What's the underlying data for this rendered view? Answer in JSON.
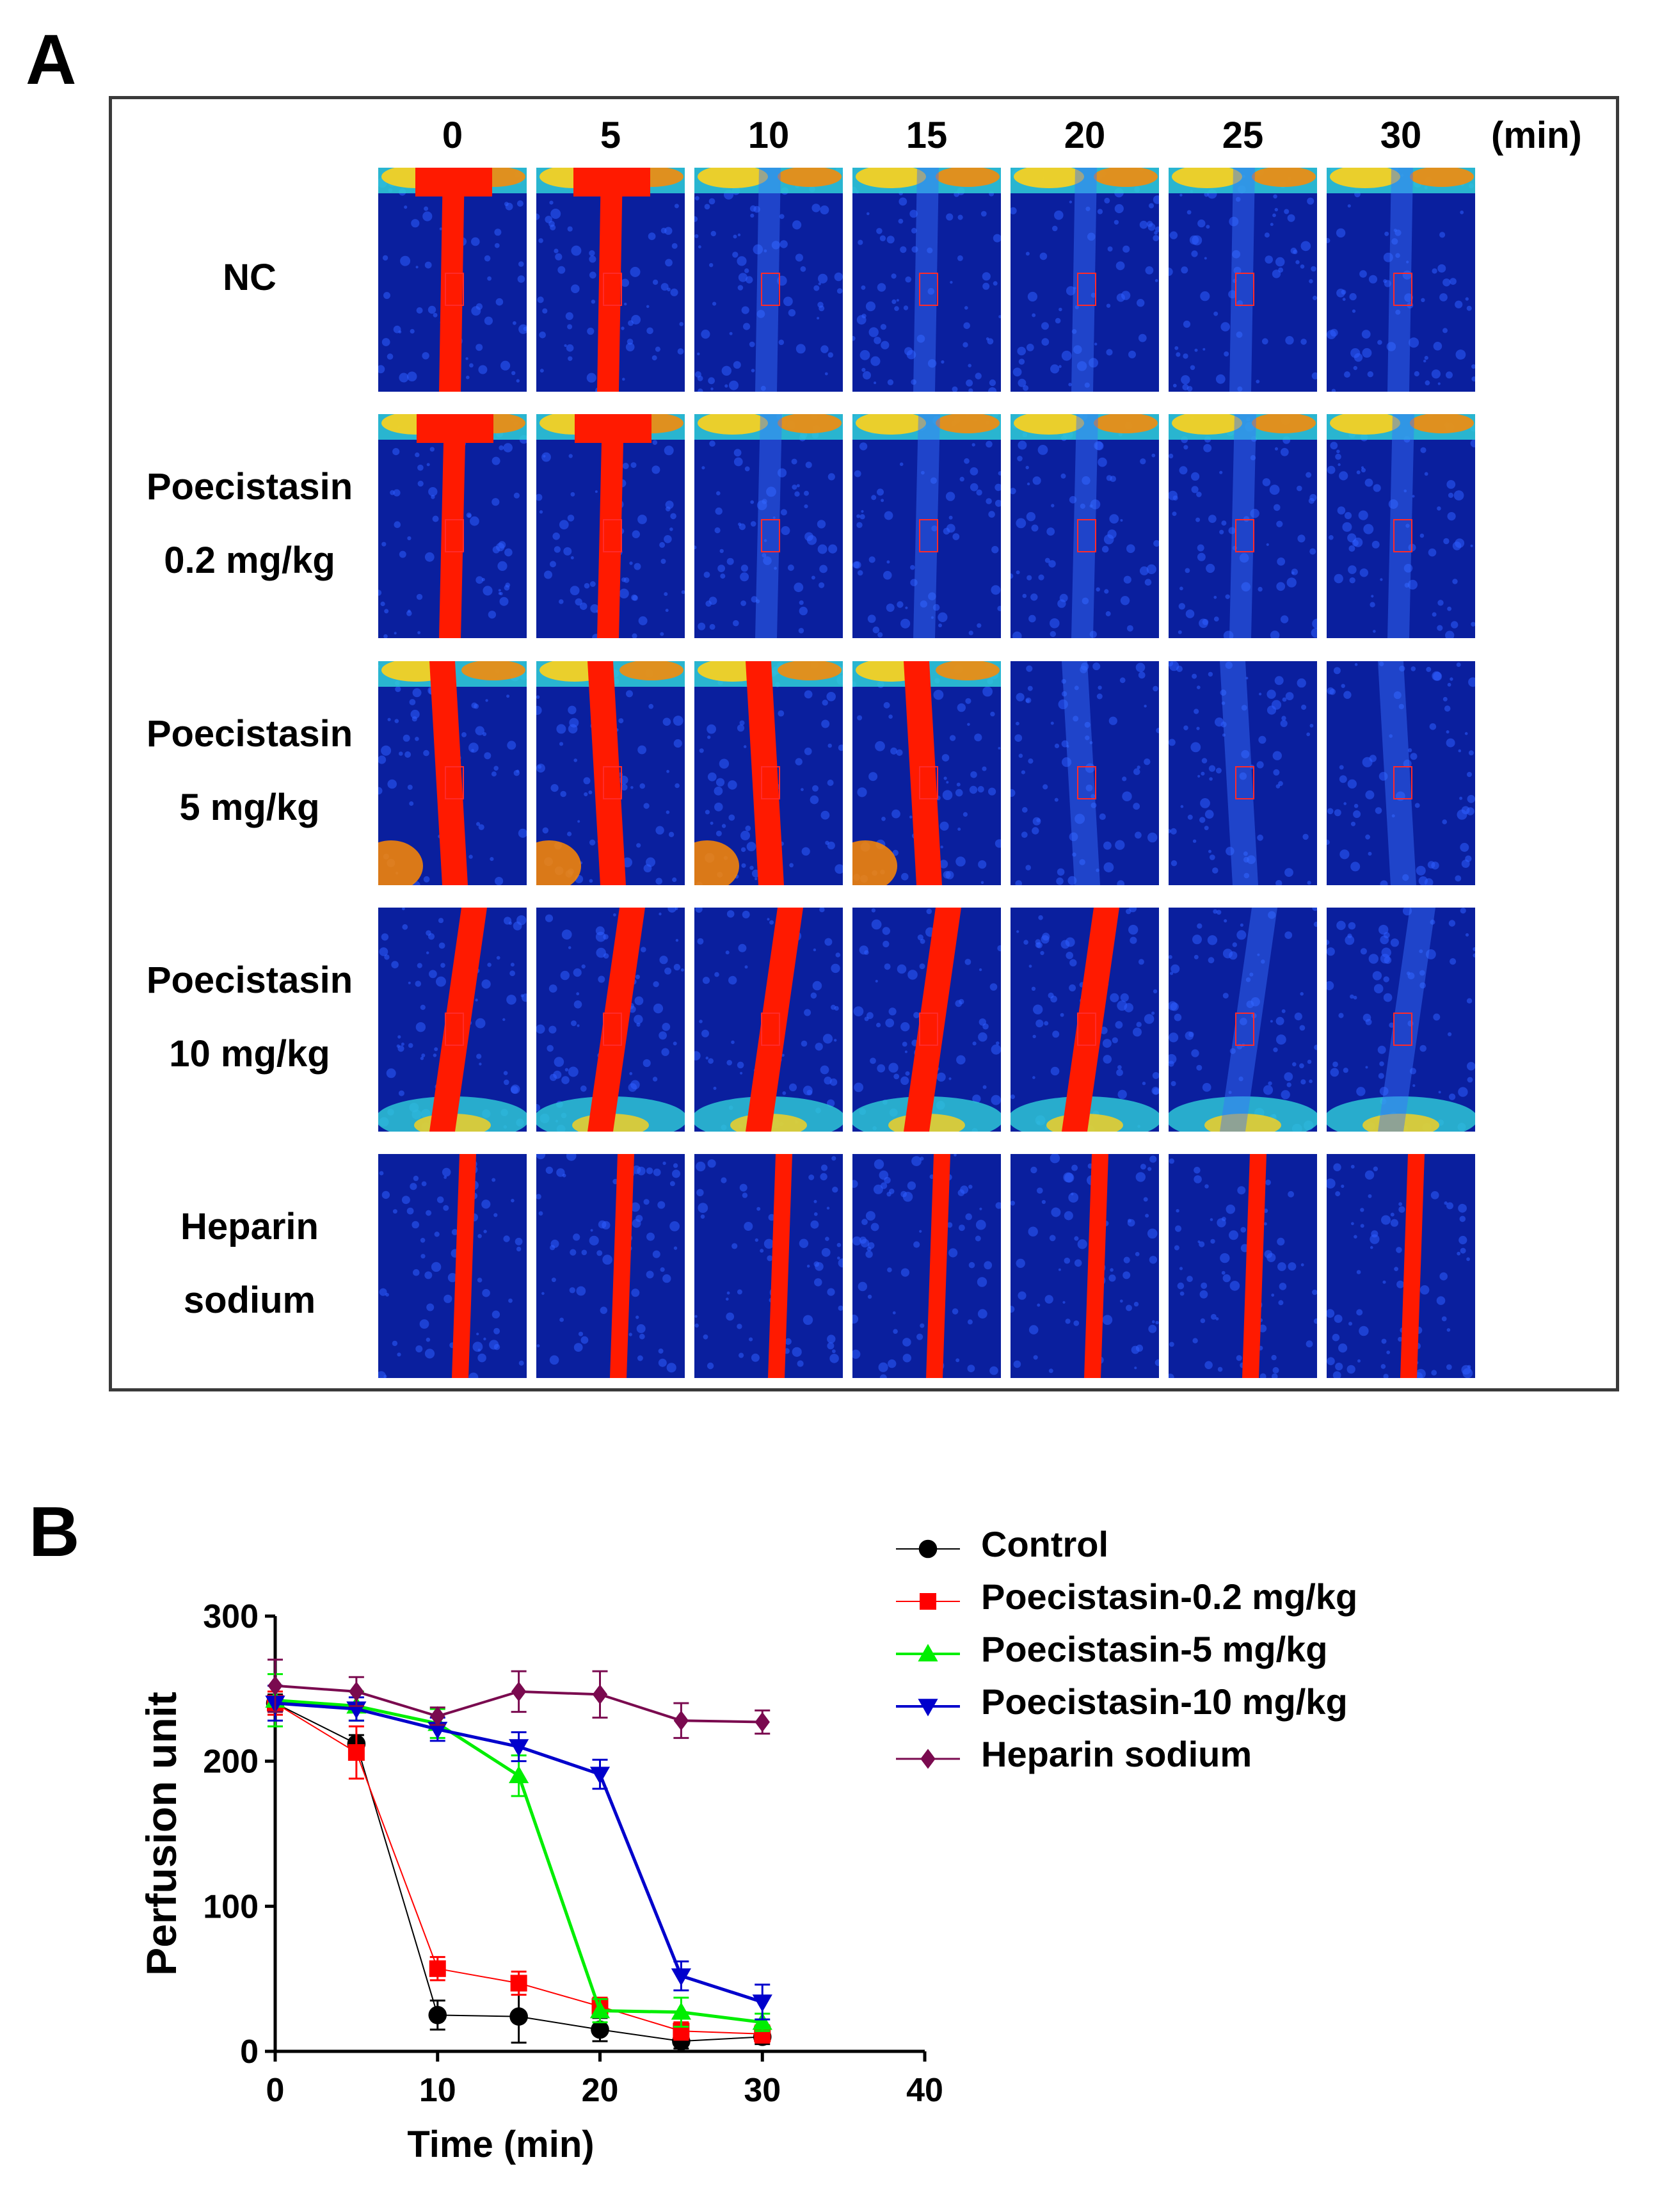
{
  "panel_a": {
    "letter": "A",
    "time_points": [
      "0",
      "5",
      "10",
      "15",
      "20",
      "25",
      "30"
    ],
    "time_unit": "(min)",
    "rows": [
      {
        "label_lines": [
          "NC"
        ]
      },
      {
        "label_lines": [
          "Poecistasin",
          "0.2 mg/kg"
        ]
      },
      {
        "label_lines": [
          "Poecistasin",
          "5 mg/kg"
        ]
      },
      {
        "label_lines": [
          "Poecistasin",
          "10 mg/kg"
        ]
      },
      {
        "label_lines": [
          "Heparin",
          "sodium"
        ]
      }
    ],
    "colors": {
      "background": "#0a1f9e",
      "flow": "#ff1a00",
      "roi": "#ff2a2a"
    }
  },
  "panel_b": {
    "letter": "B"
  },
  "chart_data": {
    "type": "line",
    "title": "",
    "xlabel": "Time (min)",
    "ylabel": "Perfusion unit",
    "xlim": [
      0,
      40
    ],
    "ylim": [
      0,
      300
    ],
    "xticks": [
      0,
      10,
      20,
      30,
      40
    ],
    "yticks": [
      0,
      100,
      200,
      300
    ],
    "x": [
      0,
      5,
      10,
      15,
      20,
      25,
      30
    ],
    "series": [
      {
        "name": "Control",
        "color": "#000000",
        "marker": "circle",
        "line_width": 2,
        "values": [
          240,
          212,
          25,
          24,
          15,
          7,
          10
        ],
        "errors": [
          6,
          6,
          10,
          18,
          8,
          5,
          5
        ]
      },
      {
        "name": "Poecistasin-0.2 mg/kg",
        "color": "#ff0000",
        "marker": "square",
        "line_width": 2,
        "values": [
          240,
          206,
          57,
          47,
          31,
          14,
          12
        ],
        "errors": [
          8,
          18,
          8,
          8,
          6,
          6,
          6
        ]
      },
      {
        "name": "Poecistasin-5 mg/kg",
        "color": "#00ee00",
        "marker": "triangle-up",
        "line_width": 5,
        "values": [
          242,
          238,
          226,
          190,
          28,
          27,
          20
        ],
        "errors": [
          18,
          10,
          10,
          14,
          8,
          10,
          6
        ]
      },
      {
        "name": "Poecistasin-10 mg/kg",
        "color": "#0000cc",
        "marker": "triangle-down",
        "line_width": 5,
        "values": [
          240,
          236,
          222,
          210,
          191,
          52,
          34
        ],
        "errors": [
          12,
          8,
          8,
          10,
          10,
          10,
          12
        ]
      },
      {
        "name": "Heparin sodium",
        "color": "#7a0a4f",
        "marker": "diamond",
        "line_width": 4,
        "values": [
          252,
          248,
          231,
          248,
          246,
          228,
          227
        ],
        "errors": [
          18,
          10,
          6,
          14,
          16,
          12,
          8
        ]
      }
    ],
    "legend": "right"
  }
}
